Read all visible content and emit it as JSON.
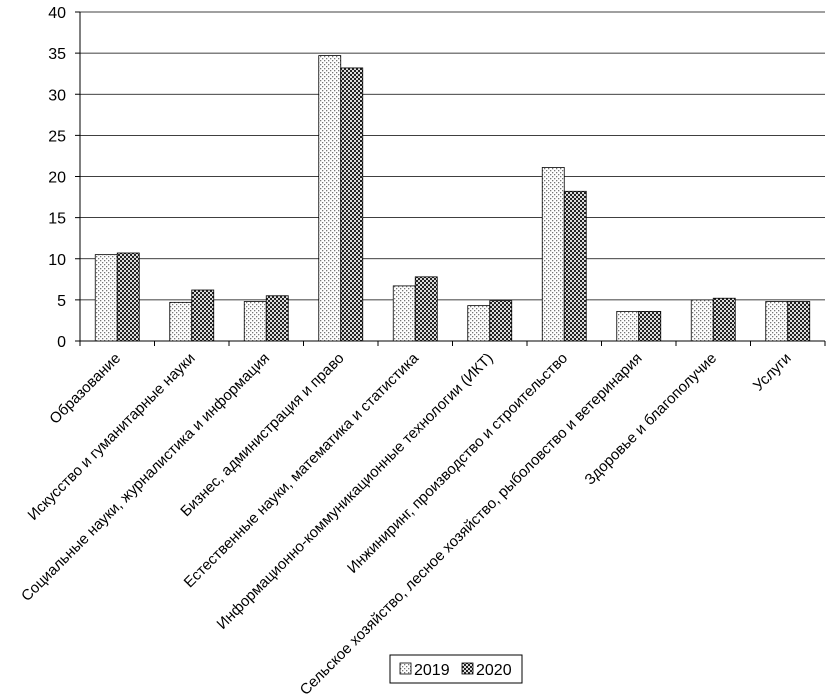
{
  "chart_data": {
    "type": "bar",
    "categories": [
      "Образование",
      "Искусство и гуманитарные науки",
      "Социальные науки, журналистика и информация",
      "Бизнес, администрация и право",
      "Естественные науки, математика  и статистика",
      "Информационно-коммуникационные  технологии (ИКТ)",
      "Инжиниринг, производство и строительство",
      "Сельское хозяйство, лесное хозяйство, рыболовство и ветеринария",
      "Здоровье и благополучие",
      "Услуги"
    ],
    "series": [
      {
        "name": "2019",
        "color": "#f2f2f2",
        "pattern": "dots",
        "values": [
          10.5,
          4.7,
          4.8,
          34.7,
          6.7,
          4.3,
          21.1,
          3.6,
          5.0,
          4.8
        ]
      },
      {
        "name": "2020",
        "color": "#555555",
        "pattern": "checker",
        "values": [
          10.7,
          6.2,
          5.5,
          33.2,
          7.8,
          4.9,
          18.2,
          3.6,
          5.2,
          4.8
        ]
      }
    ],
    "ylim": [
      0,
      40
    ],
    "yticks": [
      0,
      5,
      10,
      15,
      20,
      25,
      30,
      35,
      40
    ],
    "grid": true,
    "legend": "bottom"
  }
}
